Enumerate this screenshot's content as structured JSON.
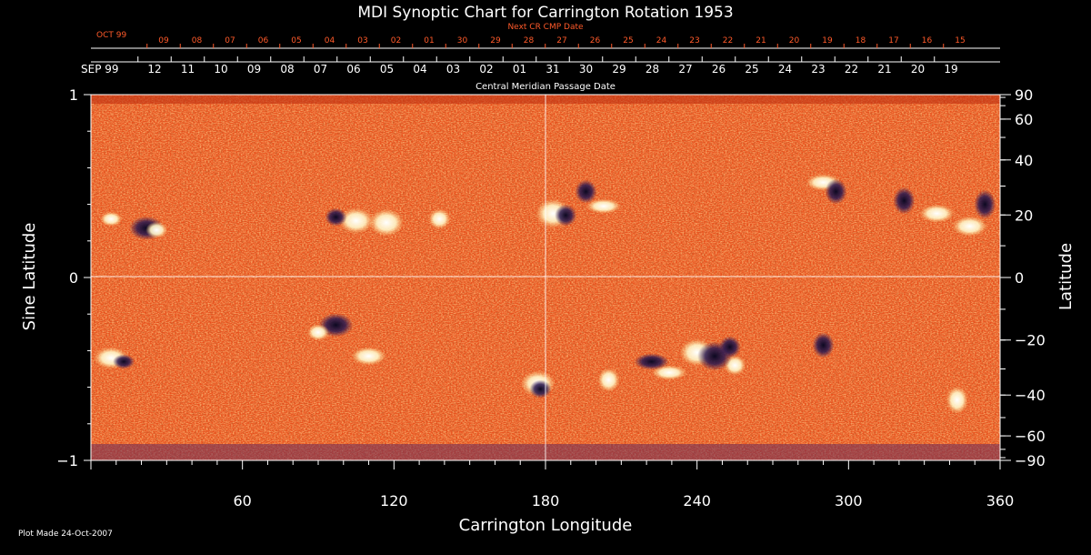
{
  "chart_data": {
    "type": "heatmap",
    "title": "MDI Synoptic Chart for Carrington Rotation 1953",
    "xlabel": "Carrington Longitude",
    "ylabel_left": "Sine Latitude",
    "ylabel_right": "Latitude",
    "xlim": [
      0,
      360
    ],
    "ylim": [
      -1,
      1
    ],
    "x_ticks": [
      60,
      120,
      180,
      240,
      300,
      360
    ],
    "y_ticks_left": [
      "1",
      "0",
      "−1"
    ],
    "y_ticks_right": [
      "90",
      "60",
      "40",
      "20",
      "0",
      "−20",
      "−40",
      "−60",
      "−90"
    ],
    "y_ticks_right_values": [
      90,
      60,
      40,
      20,
      0,
      -20,
      -40,
      -60,
      -90
    ],
    "grid": "crosshair at longitude 180 and sine latitude 0",
    "top_axis_label": "Central Meridian Passage Date",
    "top_axis_month": "SEP 99",
    "top_axis_dates": [
      "12",
      "11",
      "10",
      "09",
      "08",
      "07",
      "06",
      "05",
      "04",
      "03",
      "02",
      "01",
      "31",
      "30",
      "29",
      "28",
      "27",
      "26",
      "25",
      "24",
      "23",
      "22",
      "21",
      "20",
      "19"
    ],
    "next_cr_label": "Next CR CMP Date",
    "next_cr_month": "OCT 99",
    "next_cr_dates": [
      "09",
      "08",
      "07",
      "06",
      "05",
      "04",
      "03",
      "02",
      "01",
      "30",
      "29",
      "28",
      "27",
      "26",
      "25",
      "24",
      "23",
      "22",
      "21",
      "20",
      "19",
      "18",
      "17",
      "16",
      "15"
    ],
    "colors": {
      "background": "#000000",
      "field_base": "#e8501c",
      "positive_polarity": "#ffffff",
      "negative_polarity": "#1a0f3a",
      "axis_text": "#ffffff",
      "next_cr_text": "#ff5a2a"
    },
    "active_regions": [
      {
        "polarity": "positive",
        "lon": 8,
        "lat": 0.32
      },
      {
        "polarity": "negative",
        "lon": 22,
        "lat": 0.27
      },
      {
        "polarity": "positive",
        "lon": 26,
        "lat": 0.26
      },
      {
        "polarity": "positive",
        "lon": 105,
        "lat": 0.31
      },
      {
        "polarity": "negative",
        "lon": 97,
        "lat": 0.33
      },
      {
        "polarity": "positive",
        "lon": 117,
        "lat": 0.3
      },
      {
        "polarity": "positive",
        "lon": 138,
        "lat": 0.32
      },
      {
        "polarity": "positive",
        "lon": 183,
        "lat": 0.35
      },
      {
        "polarity": "negative",
        "lon": 188,
        "lat": 0.34
      },
      {
        "polarity": "positive",
        "lon": 203,
        "lat": 0.39
      },
      {
        "polarity": "negative",
        "lon": 196,
        "lat": 0.47
      },
      {
        "polarity": "positive",
        "lon": 290,
        "lat": 0.52
      },
      {
        "polarity": "negative",
        "lon": 295,
        "lat": 0.47
      },
      {
        "polarity": "positive",
        "lon": 335,
        "lat": 0.35
      },
      {
        "polarity": "negative",
        "lon": 322,
        "lat": 0.42
      },
      {
        "polarity": "positive",
        "lon": 348,
        "lat": 0.28
      },
      {
        "polarity": "negative",
        "lon": 354,
        "lat": 0.4
      },
      {
        "polarity": "positive",
        "lon": 8,
        "lat": -0.44
      },
      {
        "polarity": "negative",
        "lon": 13,
        "lat": -0.46
      },
      {
        "polarity": "negative",
        "lon": 97,
        "lat": -0.26
      },
      {
        "polarity": "positive",
        "lon": 90,
        "lat": -0.3
      },
      {
        "polarity": "positive",
        "lon": 177,
        "lat": -0.58
      },
      {
        "polarity": "negative",
        "lon": 178,
        "lat": -0.61
      },
      {
        "polarity": "positive",
        "lon": 240,
        "lat": -0.41
      },
      {
        "polarity": "positive",
        "lon": 255,
        "lat": -0.48
      },
      {
        "polarity": "negative",
        "lon": 247,
        "lat": -0.43
      },
      {
        "polarity": "negative",
        "lon": 253,
        "lat": -0.38
      },
      {
        "polarity": "positive",
        "lon": 229,
        "lat": -0.52
      },
      {
        "polarity": "positive",
        "lon": 205,
        "lat": -0.56
      },
      {
        "polarity": "negative",
        "lon": 222,
        "lat": -0.46
      },
      {
        "polarity": "negative",
        "lon": 290,
        "lat": -0.37
      },
      {
        "polarity": "positive",
        "lon": 110,
        "lat": -0.43
      },
      {
        "polarity": "positive",
        "lon": 343,
        "lat": -0.67
      }
    ]
  },
  "footer": {
    "plot_made": "Plot Made 24-Oct-2007"
  }
}
